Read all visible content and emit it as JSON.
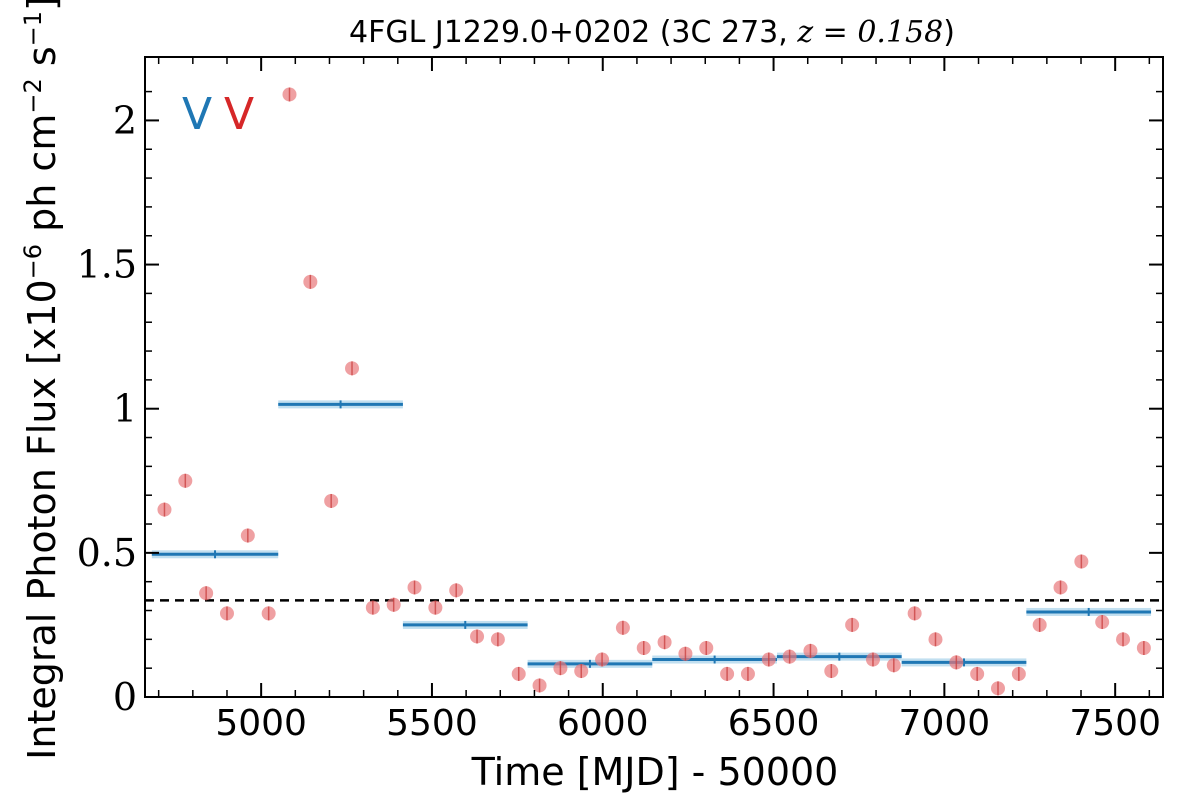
{
  "chart_data": {
    "type": "scatter",
    "title_main": "4FGL J1229.0+0202 (3C 273, ",
    "title_math": "z = 0.158",
    "title_close": ")",
    "xlabel": "Time [MJD] - 50000",
    "ylabel": "Integral Photon Flux [x10",
    "ylabel_exp": "−6",
    "ylabel_mid": " ph cm",
    "ylabel_exp2": "−2",
    "ylabel_mid2": " s",
    "ylabel_exp3": "−1",
    "ylabel_close": "]",
    "xlim": [
      4660,
      7640
    ],
    "ylim": [
      0,
      2.22
    ],
    "xticks": [
      5000,
      5500,
      6000,
      6500,
      7000,
      7500
    ],
    "xtick_labels": [
      "5000",
      "5500",
      "6000",
      "6500",
      "7000",
      "7500"
    ],
    "yticks": [
      0,
      0.5,
      1,
      1.5,
      2
    ],
    "ytick_labels": [
      "0",
      "0.5",
      "1",
      "1.5",
      "2"
    ],
    "mean_flux": 0.335,
    "markers": [
      {
        "text": "V",
        "color": "#1f77b4"
      },
      {
        "text": "V",
        "color": "#d62728"
      }
    ],
    "series": [
      {
        "kind": "points",
        "color": "#e8787a",
        "x": [
          4717,
          4778,
          4839,
          4900,
          4961,
          5022,
          5083,
          5144,
          5205,
          5266,
          5327,
          5388,
          5449,
          5510,
          5571,
          5632,
          5693,
          5754,
          5815,
          5876,
          5937,
          5998,
          6059,
          6120,
          6181,
          6242,
          6303,
          6364,
          6425,
          6486,
          6547,
          6608,
          6669,
          6730,
          6791,
          6852,
          6913,
          6974,
          7035,
          7096,
          7157,
          7218,
          7279,
          7340,
          7401,
          7462,
          7523,
          7584
        ],
        "y": [
          0.65,
          0.75,
          0.36,
          0.29,
          0.56,
          0.29,
          2.09,
          1.44,
          0.68,
          1.14,
          0.31,
          0.32,
          0.38,
          0.31,
          0.37,
          0.21,
          0.2,
          0.08,
          0.04,
          0.1,
          0.09,
          0.13,
          0.24,
          0.17,
          0.19,
          0.15,
          0.17,
          0.08,
          0.08,
          0.13,
          0.14,
          0.16,
          0.09,
          0.25,
          0.13,
          0.11,
          0.29,
          0.2,
          0.12,
          0.08,
          0.03,
          0.08,
          0.25,
          0.38,
          0.47,
          0.26,
          0.2,
          0.17
        ]
      },
      {
        "kind": "bins",
        "color": "#1f77b4",
        "bins": [
          {
            "x0": 4680,
            "x1": 5050,
            "y": 0.495
          },
          {
            "x0": 5050,
            "x1": 5415,
            "y": 1.015
          },
          {
            "x0": 5415,
            "x1": 5780,
            "y": 0.25
          },
          {
            "x0": 5780,
            "x1": 6145,
            "y": 0.115
          },
          {
            "x0": 6145,
            "x1": 6510,
            "y": 0.13
          },
          {
            "x0": 6510,
            "x1": 6875,
            "y": 0.14
          },
          {
            "x0": 6875,
            "x1": 7240,
            "y": 0.12
          },
          {
            "x0": 7240,
            "x1": 7605,
            "y": 0.295
          }
        ]
      }
    ]
  }
}
